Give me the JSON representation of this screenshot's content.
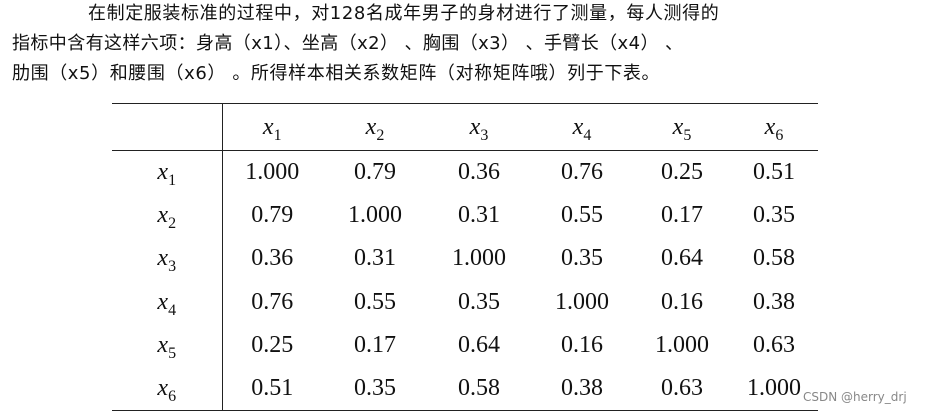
{
  "paragraph": {
    "lines": [
      "在制定服装标准的过程中，对128名成年男子的身材进行了测量，每人测得的",
      "指标中含有这样六项：身高（x1）、坐高（x2） 、胸围（x3） 、手臂长（x4） 、",
      "肋围（x5）和腰围（x6） 。所得样本相关系数矩阵（对称矩阵哦）列于下表。"
    ]
  },
  "table": {
    "columns": [
      {
        "base": "x",
        "sub": "1"
      },
      {
        "base": "x",
        "sub": "2"
      },
      {
        "base": "x",
        "sub": "3"
      },
      {
        "base": "x",
        "sub": "4"
      },
      {
        "base": "x",
        "sub": "5"
      },
      {
        "base": "x",
        "sub": "6"
      }
    ],
    "rows": [
      {
        "label": {
          "base": "x",
          "sub": "1"
        },
        "cells": [
          "1.000",
          "0.79",
          "0.36",
          "0.76",
          "0.25",
          "0.51"
        ]
      },
      {
        "label": {
          "base": "x",
          "sub": "2"
        },
        "cells": [
          "0.79",
          "1.000",
          "0.31",
          "0.55",
          "0.17",
          "0.35"
        ]
      },
      {
        "label": {
          "base": "x",
          "sub": "3"
        },
        "cells": [
          "0.36",
          "0.31",
          "1.000",
          "0.35",
          "0.64",
          "0.58"
        ]
      },
      {
        "label": {
          "base": "x",
          "sub": "4"
        },
        "cells": [
          "0.76",
          "0.55",
          "0.35",
          "1.000",
          "0.16",
          "0.38"
        ]
      },
      {
        "label": {
          "base": "x",
          "sub": "5"
        },
        "cells": [
          "0.25",
          "0.17",
          "0.64",
          "0.16",
          "1.000",
          "0.63"
        ]
      },
      {
        "label": {
          "base": "x",
          "sub": "6"
        },
        "cells": [
          "0.51",
          "0.35",
          "0.58",
          "0.38",
          "0.63",
          "1.000"
        ]
      }
    ]
  },
  "watermark": "CSDN @herry_drj"
}
